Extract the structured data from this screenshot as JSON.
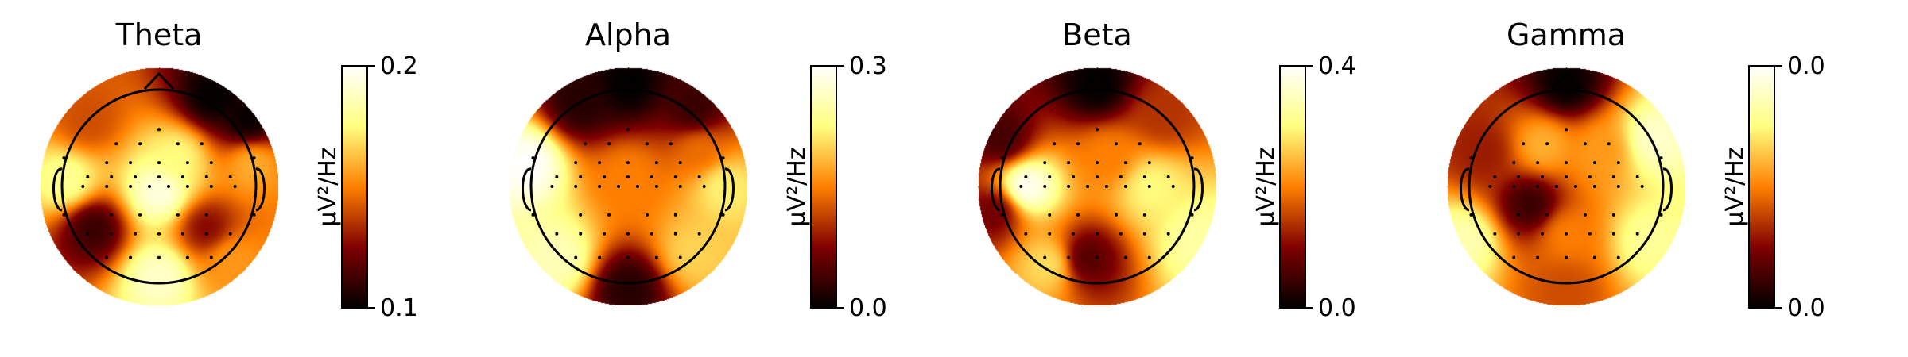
{
  "chart_data": [
    {
      "type": "heatmap",
      "title": "Theta",
      "colorbar": {
        "label": "µV²/Hz",
        "min_label": "0.1",
        "max_label": "0.2",
        "range": [
          0.1,
          0.2
        ],
        "colormap": "afmhot"
      },
      "hotspots": [
        {
          "x": 0.0,
          "y": -0.05,
          "value": 0.195
        },
        {
          "x": 0.15,
          "y": 0.25,
          "value": 0.175
        },
        {
          "x": 0.0,
          "y": -0.75,
          "value": 0.19
        },
        {
          "x": -0.78,
          "y": 0.05,
          "value": 0.18
        },
        {
          "x": 0.78,
          "y": 0.2,
          "value": 0.16
        },
        {
          "x": -0.6,
          "y": 0.55,
          "value": 0.14
        },
        {
          "x": 0.45,
          "y": 0.75,
          "value": 0.1
        },
        {
          "x": 0.75,
          "y": 0.55,
          "value": 0.1
        },
        {
          "x": -0.55,
          "y": -0.35,
          "value": 0.11
        },
        {
          "x": 0.6,
          "y": -0.6,
          "value": 0.155
        },
        {
          "x": 0.4,
          "y": -0.35,
          "value": 0.125
        }
      ]
    },
    {
      "type": "heatmap",
      "title": "Alpha",
      "colorbar": {
        "label": "µV²/Hz",
        "min_label": "0.0",
        "max_label": "0.3",
        "range": [
          0.0,
          0.3
        ],
        "colormap": "afmhot"
      },
      "hotspots": [
        {
          "x": -0.85,
          "y": 0.2,
          "value": 0.3
        },
        {
          "x": 0.8,
          "y": 0.0,
          "value": 0.22
        },
        {
          "x": 0.0,
          "y": 0.1,
          "value": 0.15
        },
        {
          "x": 0.0,
          "y": 0.85,
          "value": 0.0
        },
        {
          "x": -0.4,
          "y": 0.7,
          "value": 0.02
        },
        {
          "x": 0.55,
          "y": 0.65,
          "value": 0.03
        },
        {
          "x": -0.6,
          "y": -0.6,
          "value": 0.26
        },
        {
          "x": 0.0,
          "y": -0.85,
          "value": 0.02
        },
        {
          "x": 0.55,
          "y": -0.55,
          "value": 0.2
        },
        {
          "x": 0.6,
          "y": 0.3,
          "value": 0.14
        }
      ]
    },
    {
      "type": "heatmap",
      "title": "Beta",
      "colorbar": {
        "label": "µV²/Hz",
        "min_label": "0.0",
        "max_label": "0.4",
        "range": [
          0.0,
          0.4
        ],
        "colormap": "afmhot"
      },
      "hotspots": [
        {
          "x": -0.6,
          "y": 0.0,
          "value": 0.4
        },
        {
          "x": 0.0,
          "y": 0.85,
          "value": 0.0
        },
        {
          "x": -0.8,
          "y": 0.4,
          "value": 0.05
        },
        {
          "x": -0.85,
          "y": -0.2,
          "value": 0.08
        },
        {
          "x": 0.45,
          "y": 0.0,
          "value": 0.3
        },
        {
          "x": 0.85,
          "y": -0.45,
          "value": 0.33
        },
        {
          "x": -0.1,
          "y": -0.6,
          "value": 0.06
        },
        {
          "x": 0.1,
          "y": 0.25,
          "value": 0.2
        },
        {
          "x": -0.4,
          "y": -0.65,
          "value": 0.28
        },
        {
          "x": 0.55,
          "y": 0.6,
          "value": 0.14
        }
      ]
    },
    {
      "type": "heatmap",
      "title": "Gamma",
      "colorbar": {
        "label": "µV²/Hz",
        "min_label": "0.0",
        "max_label": "0.0",
        "range": [
          0.0,
          0.001
        ],
        "colormap": "afmhot"
      },
      "hotspots": [
        {
          "x": 0.0,
          "y": 0.85,
          "value": 0.0
        },
        {
          "x": 0.75,
          "y": 0.4,
          "value": 0.0009
        },
        {
          "x": -0.85,
          "y": -0.45,
          "value": 0.00085
        },
        {
          "x": -0.3,
          "y": -0.15,
          "value": 0.0001
        },
        {
          "x": 0.7,
          "y": -0.45,
          "value": 0.0008
        },
        {
          "x": -0.2,
          "y": 0.35,
          "value": 0.0006
        },
        {
          "x": 0.3,
          "y": 0.3,
          "value": 0.00055
        },
        {
          "x": 0.0,
          "y": -0.4,
          "value": 0.0005
        },
        {
          "x": -0.7,
          "y": 0.3,
          "value": 0.0003
        },
        {
          "x": 0.0,
          "y": -0.85,
          "value": 0.0004
        }
      ]
    }
  ]
}
